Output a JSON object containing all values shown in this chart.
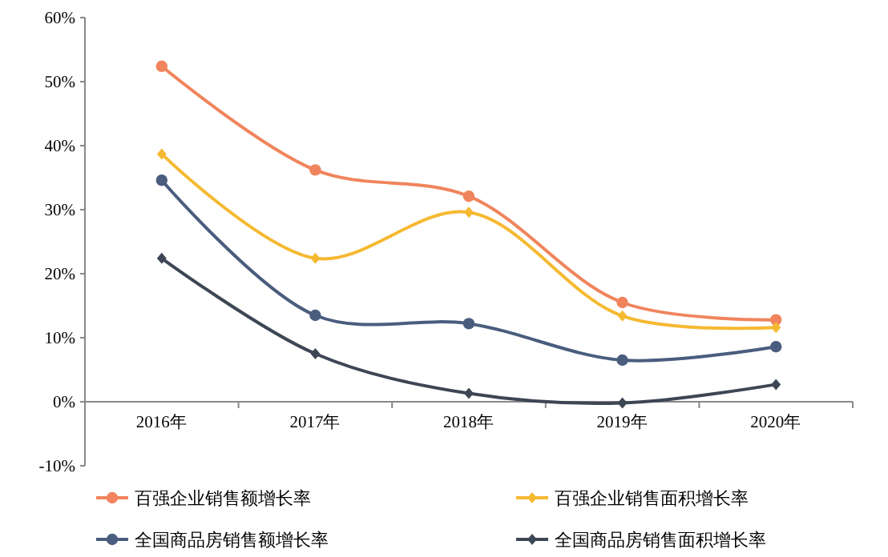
{
  "chart_data": {
    "type": "line",
    "categories": [
      "2016年",
      "2017年",
      "2018年",
      "2019年",
      "2020年"
    ],
    "ylim": [
      -10,
      60
    ],
    "yticks": [
      {
        "value": -10,
        "label": "-10%"
      },
      {
        "value": 0,
        "label": "0%"
      },
      {
        "value": 10,
        "label": "10%"
      },
      {
        "value": 20,
        "label": "20%"
      },
      {
        "value": 30,
        "label": "30%"
      },
      {
        "value": 40,
        "label": "40%"
      },
      {
        "value": 50,
        "label": "50%"
      },
      {
        "value": 60,
        "label": "60%"
      }
    ],
    "legend": "bottom",
    "grid": false,
    "series": [
      {
        "name": "百强企业销售额增长率",
        "color": "#f0845c",
        "marker": "circle",
        "values": [
          52.4,
          36.2,
          32.1,
          15.5,
          12.8
        ]
      },
      {
        "name": "百强企业销售面积增长率",
        "color": "#f5b931",
        "marker": "diamond",
        "values": [
          38.7,
          22.4,
          29.6,
          13.4,
          11.6
        ]
      },
      {
        "name": "全国商品房销售额增长率",
        "color": "#4a5d7e",
        "marker": "circle",
        "values": [
          34.6,
          13.5,
          12.2,
          6.5,
          8.6
        ]
      },
      {
        "name": "全国商品房销售面积增长率",
        "color": "#3d4654",
        "marker": "diamond",
        "values": [
          22.4,
          7.5,
          1.3,
          -0.2,
          2.7
        ]
      }
    ]
  }
}
